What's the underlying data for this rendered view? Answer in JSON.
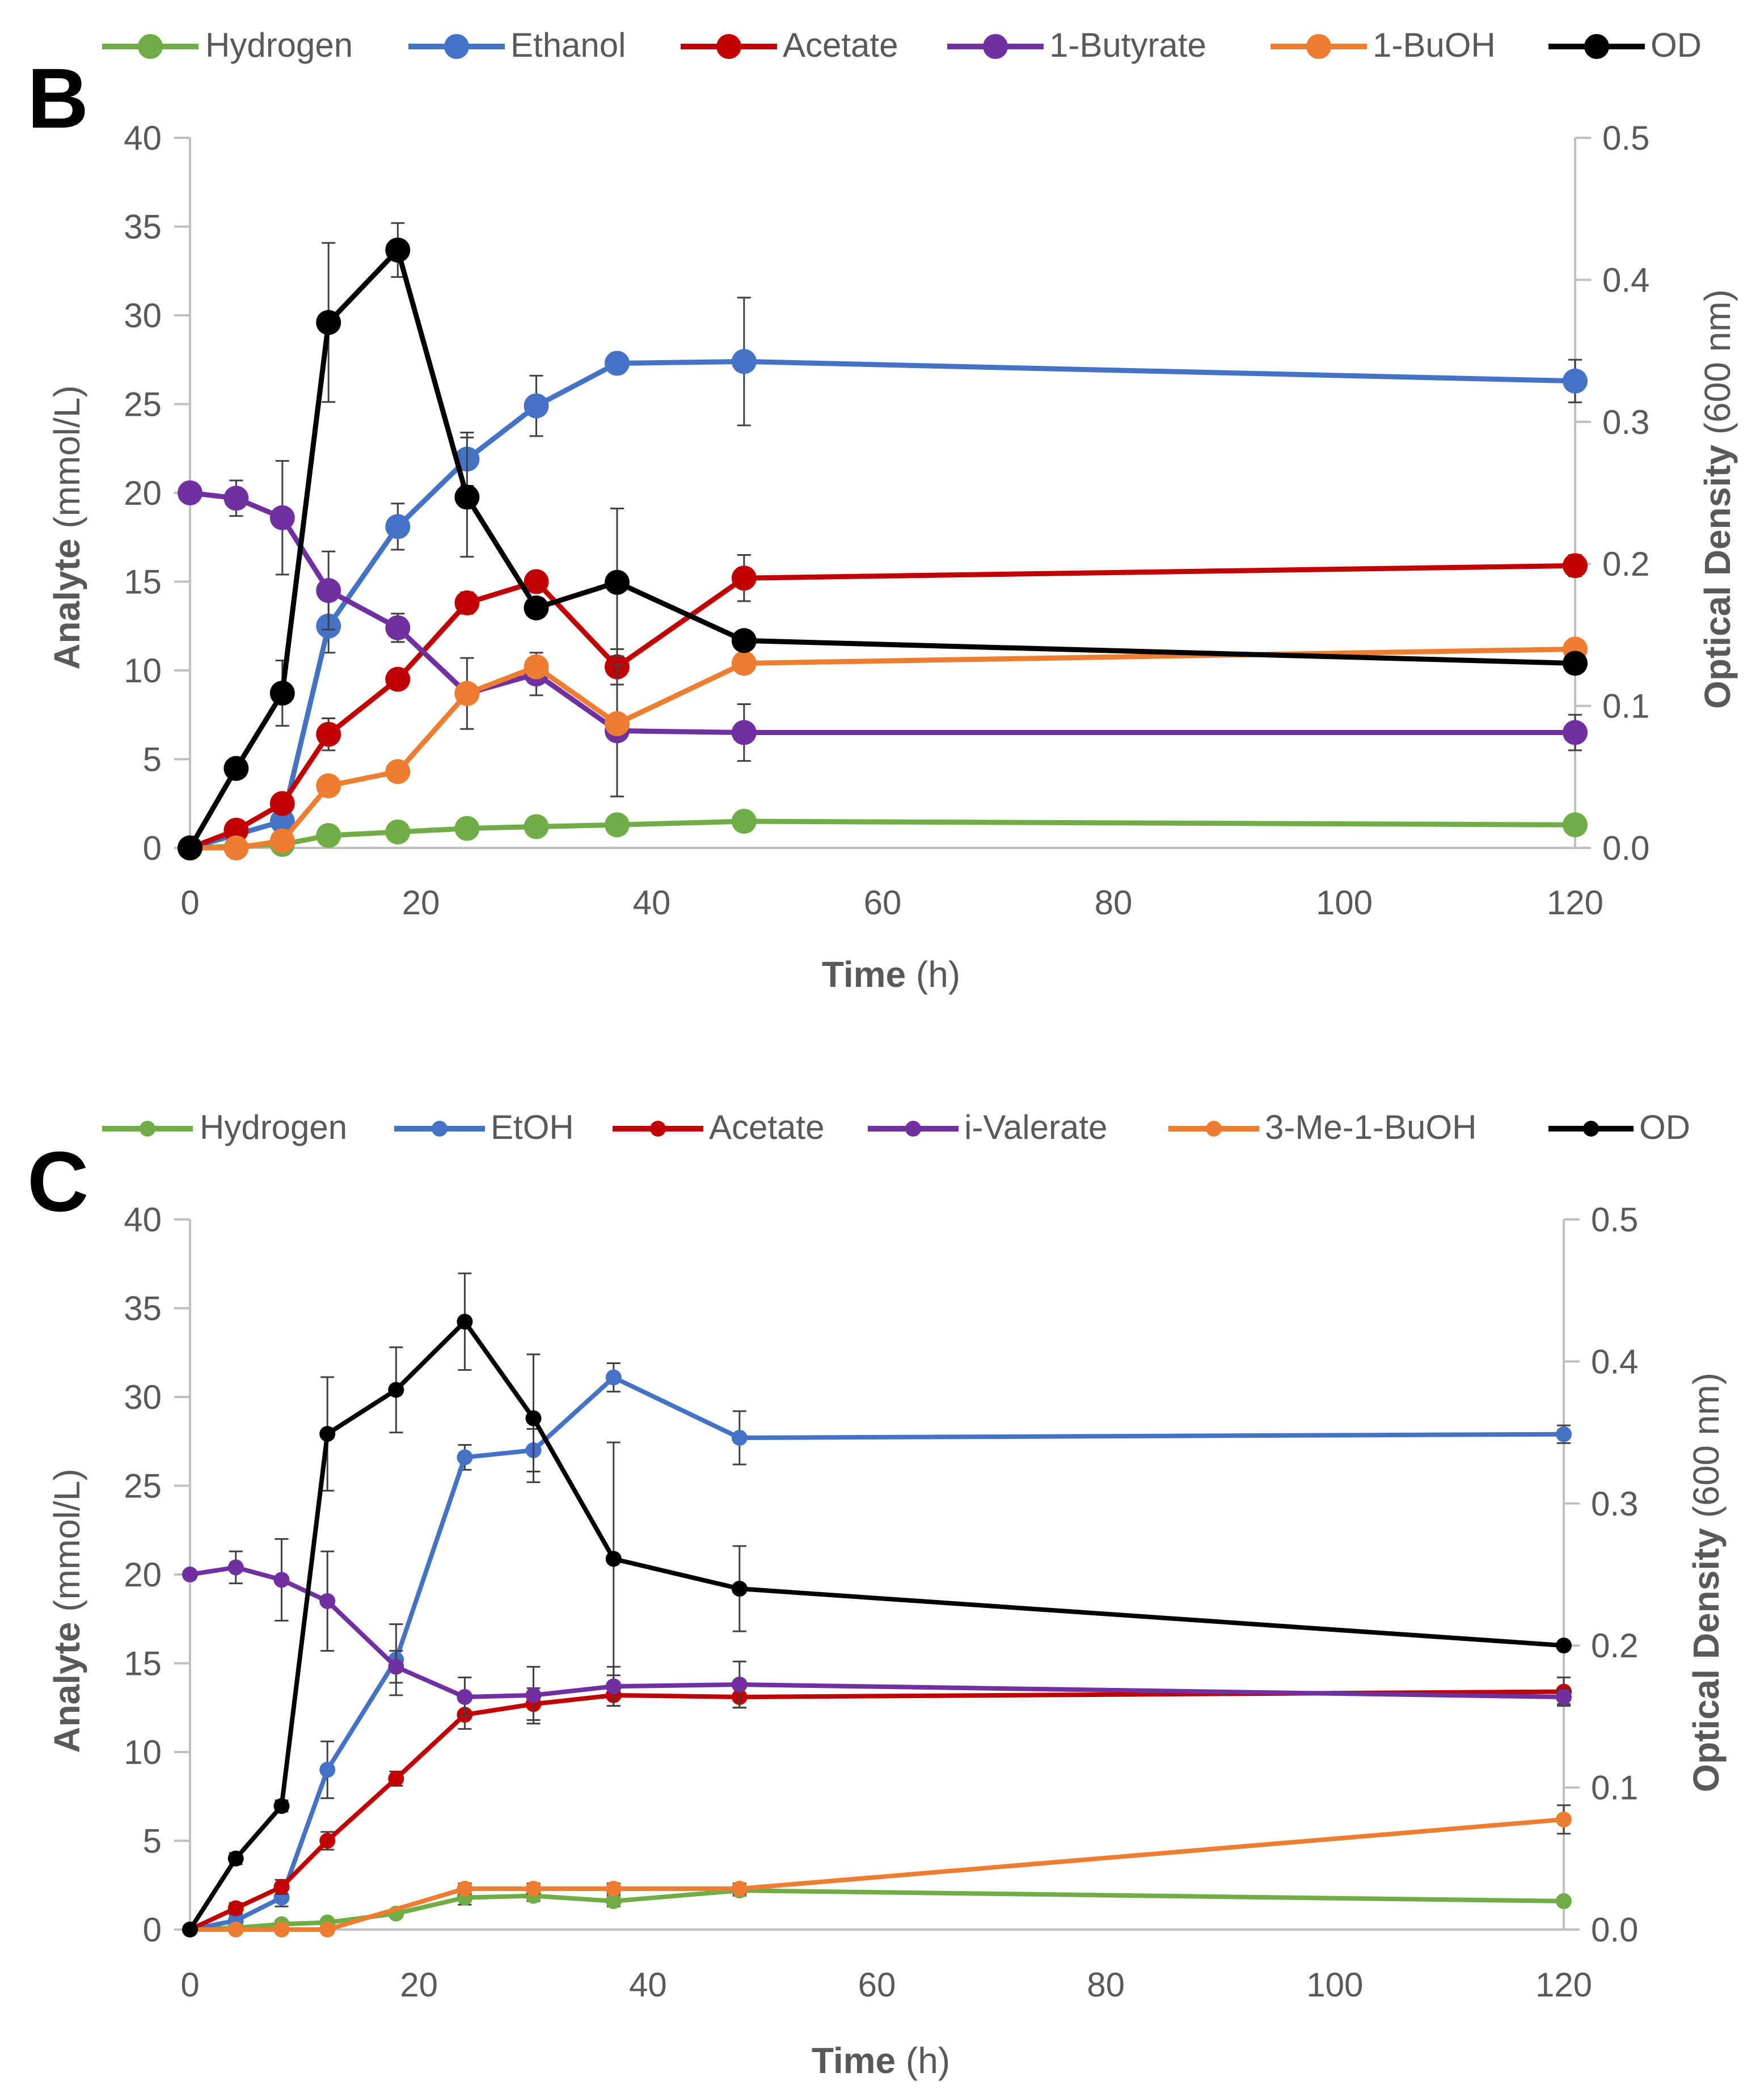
{
  "colors": {
    "hydrogen": "#70AD47",
    "ethanol": "#4472C4",
    "acetate": "#C00000",
    "acid": "#7030A0",
    "alcohol": "#ED7D31",
    "od": "#000000",
    "axis": "#BFBFBF",
    "text": "#595959"
  },
  "chart_data": [
    {
      "type": "line",
      "panel_label": "B",
      "xlabel_bold": "Time",
      "xlabel_unit": "(h)",
      "ylabel_bold": "Analyte",
      "ylabel_unit": "(mmol/L)",
      "y2label_bold": "Optical Density",
      "y2label_unit": "(600 nm)",
      "xlim": [
        0,
        120
      ],
      "ylim": [
        0,
        40
      ],
      "y2lim": [
        0,
        0.5
      ],
      "xticks": [
        "0",
        "20",
        "40",
        "60",
        "80",
        "100",
        "120"
      ],
      "yticks": [
        "0",
        "5",
        "10",
        "15",
        "20",
        "25",
        "30",
        "35",
        "40"
      ],
      "y2ticks": [
        "0.0",
        "0.1",
        "0.2",
        "0.3",
        "0.4",
        "0.5"
      ],
      "legend_position": "top",
      "series": [
        {
          "name": "Hydrogen",
          "color_key": "hydrogen",
          "axis": "left",
          "x": [
            0,
            8,
            12,
            18,
            24,
            30,
            37,
            48,
            120
          ],
          "y": [
            0,
            0.2,
            0.7,
            0.9,
            1.1,
            1.2,
            1.3,
            1.5,
            1.3
          ],
          "err": [
            0,
            0,
            0.3,
            0.2,
            0.2,
            0.2,
            0.2,
            0.2,
            0.2
          ]
        },
        {
          "name": "Ethanol",
          "color_key": "ethanol",
          "axis": "left",
          "x": [
            0,
            8,
            12,
            18,
            24,
            30,
            37,
            48,
            120
          ],
          "y": [
            0,
            1.5,
            12.5,
            18.1,
            21.9,
            24.9,
            27.3,
            27.4,
            26.3
          ],
          "err": [
            0,
            0.5,
            1.5,
            1.3,
            1.5,
            1.7,
            0.5,
            3.6,
            1.2
          ]
        },
        {
          "name": "Acetate",
          "color_key": "acetate",
          "axis": "left",
          "x": [
            0,
            4,
            8,
            12,
            18,
            24,
            30,
            37,
            48,
            120
          ],
          "y": [
            0,
            1.0,
            2.5,
            6.4,
            9.5,
            13.8,
            15.0,
            10.2,
            15.2,
            15.9
          ],
          "err": [
            0,
            0.3,
            0.4,
            0.9,
            0.4,
            0.6,
            0.5,
            1.0,
            1.3,
            0.6
          ]
        },
        {
          "name": "1-Butyrate",
          "color_key": "acid",
          "axis": "left",
          "x": [
            0,
            4,
            8,
            12,
            18,
            24,
            30,
            37,
            48,
            120
          ],
          "y": [
            20.0,
            19.7,
            18.6,
            14.5,
            12.4,
            8.7,
            9.8,
            6.6,
            6.5,
            6.5
          ],
          "err": [
            0,
            1.0,
            3.2,
            2.2,
            0.8,
            2.0,
            1.2,
            3.7,
            1.6,
            1.0
          ]
        },
        {
          "name": "1-BuOH",
          "color_key": "alcohol",
          "axis": "left",
          "x": [
            0,
            4,
            8,
            12,
            18,
            24,
            30,
            37,
            48,
            120
          ],
          "y": [
            0,
            0,
            0.4,
            3.5,
            4.3,
            8.7,
            10.2,
            7.0,
            10.4,
            11.2
          ],
          "err": [
            0,
            0,
            0.3,
            0.3,
            0.3,
            0.4,
            0.4,
            0.4,
            0.4,
            0.4
          ]
        },
        {
          "name": "OD",
          "color_key": "od",
          "axis": "right",
          "x": [
            0,
            4,
            8,
            12,
            18,
            24,
            30,
            37,
            48,
            120
          ],
          "y": [
            0,
            0.056,
            0.109,
            0.37,
            0.421,
            0.247,
            0.169,
            0.187,
            0.146,
            0.13
          ],
          "err": [
            0,
            0.004,
            0.023,
            0.056,
            0.019,
            0.042,
            0.005,
            0.052,
            0.004,
            0.003
          ]
        }
      ]
    },
    {
      "type": "line",
      "panel_label": "C",
      "xlabel_bold": "Time",
      "xlabel_unit": "(h)",
      "ylabel_bold": "Analyte",
      "ylabel_unit": "(mmol/L)",
      "y2label_bold": "Optical Density",
      "y2label_unit": "(600 nm)",
      "xlim": [
        0,
        120
      ],
      "ylim": [
        0,
        40
      ],
      "y2lim": [
        0,
        0.5
      ],
      "xticks": [
        "0",
        "20",
        "40",
        "60",
        "80",
        "100",
        "120"
      ],
      "yticks": [
        "0",
        "5",
        "10",
        "15",
        "20",
        "25",
        "30",
        "35",
        "40"
      ],
      "y2ticks": [
        "0.0",
        "0.1",
        "0.2",
        "0.3",
        "0.4",
        "0.5"
      ],
      "legend_position": "top",
      "series": [
        {
          "name": "Hydrogen",
          "color_key": "hydrogen",
          "axis": "left",
          "x": [
            0,
            4,
            8,
            12,
            18,
            24,
            30,
            37,
            48,
            120
          ],
          "y": [
            0,
            0.1,
            0.3,
            0.4,
            0.9,
            1.8,
            1.9,
            1.6,
            2.2,
            1.6
          ],
          "err": [
            0,
            0,
            0.1,
            0.2,
            0.2,
            0.4,
            0.3,
            0.3,
            0.3,
            0.2
          ]
        },
        {
          "name": "EtOH",
          "color_key": "ethanol",
          "axis": "left",
          "x": [
            0,
            4,
            8,
            12,
            18,
            24,
            30,
            37,
            48,
            120
          ],
          "y": [
            0,
            0.5,
            1.8,
            9.0,
            15.2,
            26.6,
            27.0,
            31.1,
            27.7,
            27.9
          ],
          "err": [
            0,
            0.3,
            0.5,
            1.6,
            2.0,
            0.7,
            1.2,
            0.8,
            1.5,
            0.5
          ]
        },
        {
          "name": "Acetate",
          "color_key": "acetate",
          "axis": "left",
          "x": [
            0,
            4,
            8,
            12,
            18,
            24,
            30,
            37,
            48,
            120
          ],
          "y": [
            0,
            1.2,
            2.4,
            5.0,
            8.5,
            12.1,
            12.7,
            13.2,
            13.1,
            13.4
          ],
          "err": [
            0,
            0.3,
            0.4,
            0.5,
            0.4,
            0.8,
            0.9,
            0.6,
            0.6,
            0.8
          ]
        },
        {
          "name": "i-Valerate",
          "color_key": "acid",
          "axis": "left",
          "x": [
            0,
            4,
            8,
            12,
            18,
            24,
            30,
            37,
            48,
            120
          ],
          "y": [
            20.0,
            20.4,
            19.7,
            18.5,
            14.8,
            13.1,
            13.2,
            13.7,
            13.8,
            13.1
          ],
          "err": [
            0,
            0.9,
            2.3,
            2.8,
            0.9,
            1.1,
            1.6,
            1.1,
            1.3,
            0.4
          ]
        },
        {
          "name": "3-Me-1-BuOH",
          "color_key": "alcohol",
          "axis": "left",
          "x": [
            0,
            4,
            8,
            12,
            24,
            30,
            37,
            48,
            120
          ],
          "y": [
            0,
            0,
            0,
            0,
            2.3,
            2.3,
            2.3,
            2.3,
            6.2
          ],
          "err": [
            0,
            0,
            0,
            0,
            0.3,
            0.3,
            0.3,
            0.3,
            0.8
          ]
        },
        {
          "name": "OD",
          "color_key": "od",
          "axis": "right",
          "x": [
            0,
            4,
            8,
            12,
            18,
            24,
            30,
            37,
            48,
            120
          ],
          "y": [
            0,
            0.05,
            0.087,
            0.349,
            0.38,
            0.428,
            0.36,
            0.261,
            0.24,
            0.2
          ],
          "err": [
            0,
            0.004,
            0.004,
            0.04,
            0.03,
            0.034,
            0.045,
            0.082,
            0.03,
            0.002
          ]
        }
      ]
    }
  ]
}
